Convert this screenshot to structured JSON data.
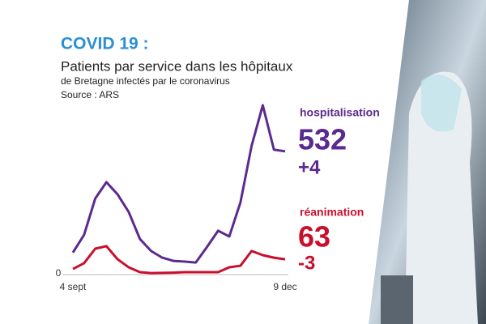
{
  "chart_data": {
    "type": "line",
    "title": "COVID 19 :",
    "subtitle": "Patients par service dans les hôpitaux",
    "subtitle2": "de Bretagne infectés par le coronavirus",
    "source": "Source : ARS",
    "categories": [
      "4 sept",
      null,
      null,
      null,
      null,
      null,
      null,
      null,
      null,
      null,
      null,
      null,
      null,
      null,
      null,
      null,
      null,
      null,
      null,
      "9 dec"
    ],
    "series": [
      {
        "name": "hospitalisation",
        "color": "#5b2a8f",
        "latest_label": "532",
        "change_label": "+4",
        "values": [
          92,
          169,
          327,
          398,
          345,
          268,
          151,
          99,
          70,
          56,
          53,
          49,
          116,
          187,
          162,
          310,
          556,
          732,
          539,
          532
        ]
      },
      {
        "name": "réanimation",
        "color": "#c8102e",
        "latest_label": "63",
        "change_label": "-3",
        "values": [
          21,
          46,
          109,
          120,
          63,
          28,
          7,
          3,
          4,
          5,
          7,
          7,
          7,
          7,
          28,
          35,
          99,
          81,
          70,
          63
        ]
      }
    ],
    "ylim": [
      0,
      760
    ],
    "yticks": [
      0
    ]
  }
}
